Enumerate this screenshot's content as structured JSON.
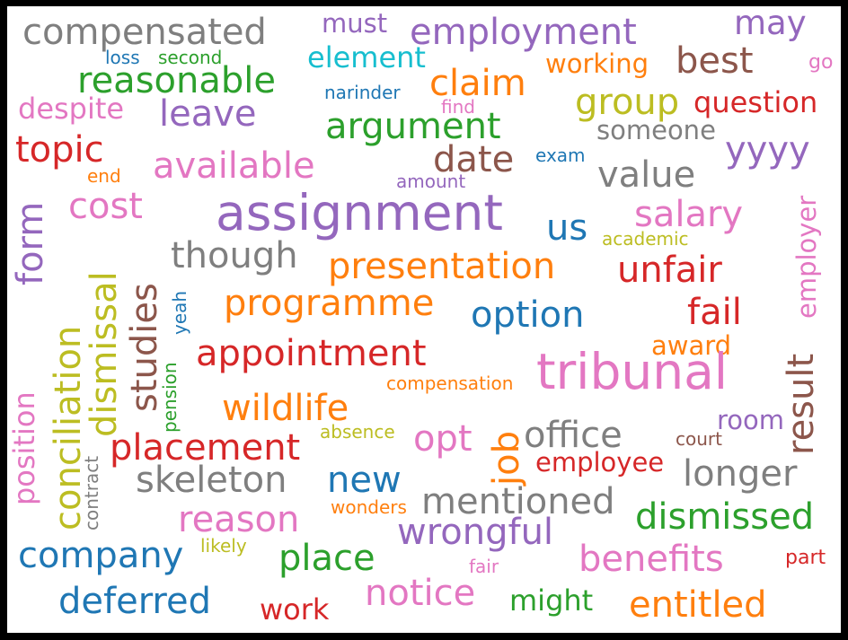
{
  "colors": {
    "blue": "#1f77b4",
    "orange": "#ff7f0e",
    "green": "#2ca02c",
    "red": "#d62728",
    "purple": "#9467bd",
    "brown": "#8c564b",
    "pink": "#e377c2",
    "gray": "#7f7f7f",
    "olive": "#bcbd22",
    "cyan": "#17becf"
  },
  "words": [
    "compensated",
    "must",
    "employment",
    "may",
    "loss",
    "second",
    "element",
    "working",
    "best",
    "go",
    "reasonable",
    "claim",
    "narinder",
    "group",
    "question",
    "despite",
    "leave",
    "find",
    "argument",
    "someone",
    "topic",
    "exam",
    "date",
    "yyyy",
    "end",
    "available",
    "amount",
    "value",
    "assignment",
    "cost",
    "salary",
    "us",
    "academic",
    "though",
    "presentation",
    "unfair",
    "programme",
    "option",
    "fail",
    "appointment",
    "award",
    "tribunal",
    "compensation",
    "wildlife",
    "room",
    "opt",
    "office",
    "absence",
    "court",
    "placement",
    "employee",
    "skeleton",
    "new",
    "longer",
    "mentioned",
    "reason",
    "dismissed",
    "wonders",
    "wrongful",
    "likely",
    "company",
    "place",
    "benefits",
    "part",
    "fair",
    "notice",
    "might",
    "deferred",
    "work",
    "entitled",
    "form",
    "conciliation",
    "dismissal",
    "studies",
    "yeah",
    "pension",
    "contract",
    "position",
    "job",
    "result",
    "employer"
  ]
}
